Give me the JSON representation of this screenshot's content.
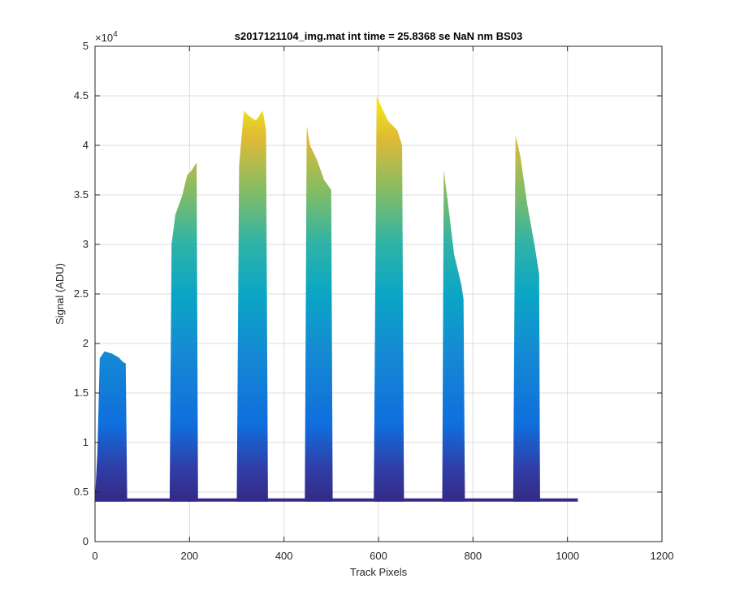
{
  "chart_data": {
    "type": "area",
    "title": "s2017121104_img.mat int time = 25.8368 se  NaN nm BS03",
    "xlabel": "Track Pixels",
    "ylabel": "Signal (ADU)",
    "xlim": [
      0,
      1200
    ],
    "ylim": [
      0,
      50000
    ],
    "x_ticks": [
      "0",
      "200",
      "400",
      "600",
      "800",
      "1000",
      "1200"
    ],
    "y_ticks": [
      "0",
      "0.5",
      "1",
      "1.5",
      "2",
      "2.5",
      "3",
      "3.5",
      "4",
      "4.5",
      "5"
    ],
    "y_exponent_label": "×10",
    "y_exponent_power": "4",
    "grid": true,
    "colormap": "parula",
    "colors": {
      "low": "#352a87",
      "mid": "#0f6edd",
      "high": "#f9fb0e",
      "grid": "#dcdcdc"
    },
    "baseline": 4200,
    "baseline_end_x": 1022,
    "series": [
      {
        "values": [
          [
            0,
            4300
          ],
          [
            5,
            9000
          ],
          [
            10,
            18500
          ],
          [
            20,
            19200
          ],
          [
            35,
            19000
          ],
          [
            50,
            18600
          ],
          [
            60,
            18100
          ],
          [
            65,
            18000
          ],
          [
            68,
            4300
          ]
        ]
      },
      {
        "values": [
          [
            158,
            4300
          ],
          [
            162,
            30000
          ],
          [
            170,
            33000
          ],
          [
            185,
            35000
          ],
          [
            195,
            37000
          ],
          [
            205,
            37500
          ],
          [
            215,
            38300
          ],
          [
            218,
            4300
          ]
        ]
      },
      {
        "values": [
          [
            300,
            4300
          ],
          [
            305,
            38000
          ],
          [
            315,
            43500
          ],
          [
            325,
            43000
          ],
          [
            340,
            42500
          ],
          [
            355,
            43500
          ],
          [
            362,
            41500
          ],
          [
            366,
            4300
          ]
        ]
      },
      {
        "values": [
          [
            444,
            4300
          ],
          [
            448,
            42000
          ],
          [
            455,
            40000
          ],
          [
            470,
            38500
          ],
          [
            485,
            36500
          ],
          [
            500,
            35500
          ],
          [
            503,
            4300
          ]
        ]
      },
      {
        "values": [
          [
            590,
            4300
          ],
          [
            596,
            45000
          ],
          [
            605,
            44000
          ],
          [
            620,
            42500
          ],
          [
            640,
            41500
          ],
          [
            650,
            40000
          ],
          [
            654,
            4300
          ]
        ]
      },
      {
        "values": [
          [
            735,
            4300
          ],
          [
            738,
            37500
          ],
          [
            745,
            35000
          ],
          [
            760,
            29000
          ],
          [
            775,
            26000
          ],
          [
            780,
            24500
          ],
          [
            783,
            4300
          ]
        ]
      },
      {
        "values": [
          [
            885,
            4300
          ],
          [
            890,
            41000
          ],
          [
            900,
            39000
          ],
          [
            915,
            34000
          ],
          [
            930,
            30000
          ],
          [
            940,
            27000
          ],
          [
            942,
            4300
          ]
        ]
      }
    ]
  }
}
